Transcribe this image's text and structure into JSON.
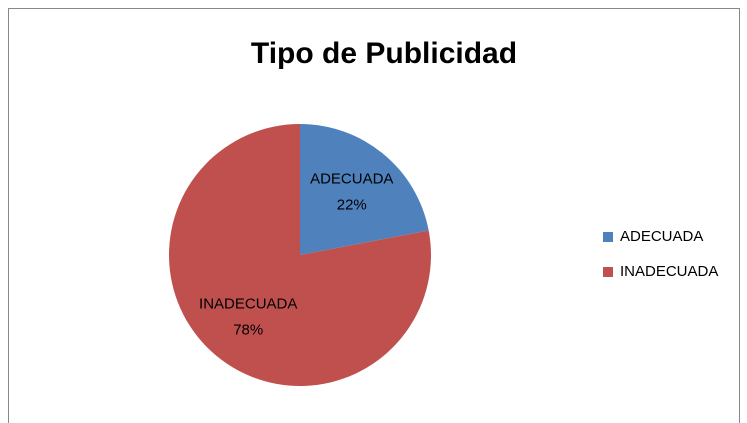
{
  "chart_data": {
    "type": "pie",
    "title": "Tipo de Publicidad",
    "categories": [
      "ADECUADA",
      "INADECUADA"
    ],
    "values": [
      22,
      78
    ],
    "value_labels": [
      "22%",
      "78%"
    ],
    "colors": [
      "#4f81bd",
      "#c0504d"
    ],
    "legend": "right"
  }
}
